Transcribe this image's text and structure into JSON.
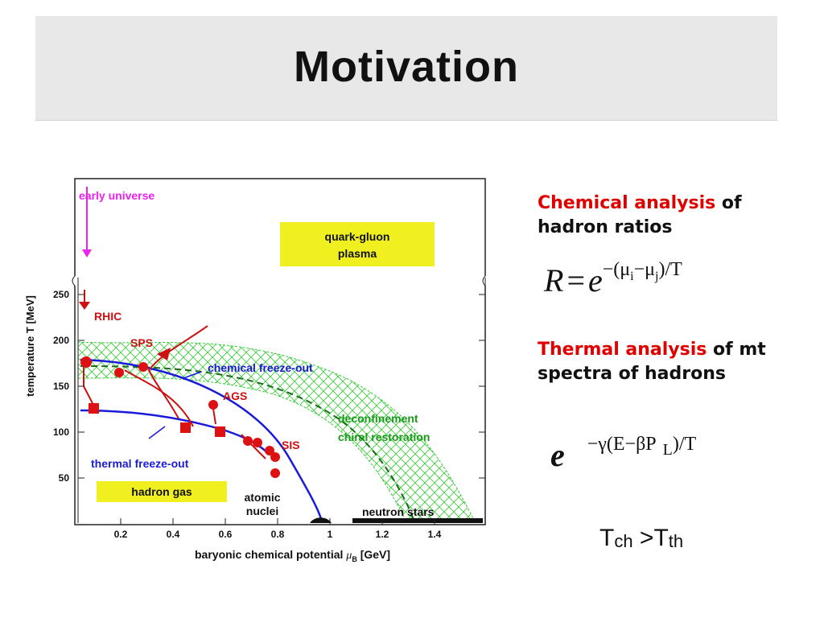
{
  "header": {
    "title": "Motivation"
  },
  "figure": {
    "y_axis_label": "temperature T [MeV]",
    "x_axis_label": "baryonic chemical potential",
    "x_axis_symbol": "μ",
    "x_axis_subscript": "B",
    "x_axis_unit": "[GeV]",
    "x_ticks": [
      "0.2",
      "0.4",
      "0.6",
      "0.8",
      "1",
      "1.2",
      "1.4"
    ],
    "y_ticks": [
      "50",
      "100",
      "150",
      "200",
      "250"
    ],
    "labels": {
      "early_universe": "early universe",
      "qgp": [
        "quark-gluon",
        "plasma"
      ],
      "rhic": "RHIC",
      "sps": "SPS",
      "ags": "AGS",
      "sis": "SIS",
      "chemical_freeze_out": "chemical freeze-out",
      "thermal_freeze_out": "thermal freeze-out",
      "deconfinement": "deconfinement",
      "chiral_restoration": "chiral restoration",
      "hadron_gas": "hadron gas",
      "atomic_nuclei": [
        "atomic",
        "nuclei"
      ],
      "neutron_stars": "neutron stars"
    }
  },
  "text": {
    "chemical": {
      "highlight": "Chemical analysis",
      "rest": " of hadron ratios"
    },
    "formula1": {
      "lhs": "R",
      "eq": "=",
      "base": "e",
      "a": "−(μ",
      "sub1": "i",
      "b": "−μ",
      "sub2": "j",
      "c": ")/T"
    },
    "thermal": {
      "highlight": "Thermal analysis",
      "rest": " of mt spectra of hadrons"
    },
    "formula2": {
      "base": "e",
      "a": "−γ(E−βP",
      "sub": "L",
      "b": ")/T"
    },
    "comparison": {
      "t1": "T",
      "s1": "ch",
      "op": " >",
      "t2": "T",
      "s2": "th"
    }
  }
}
